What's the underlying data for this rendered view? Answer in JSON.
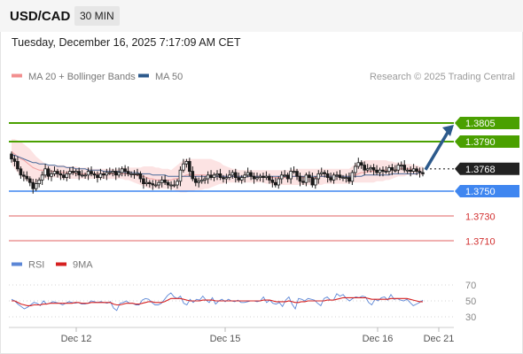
{
  "header": {
    "pair": "USD/CAD",
    "timeframe": "30 MIN"
  },
  "timestamp": "Tuesday, December 16, 2025 7:17:09 AM CET",
  "legend": {
    "items": [
      {
        "label": "MA 20 + Bollinger Bands",
        "color": "#f28f8f"
      },
      {
        "label": "MA 50",
        "color": "#2c5a8c"
      }
    ],
    "credit": "Research © 2025 Trading Central"
  },
  "rsi_legend": {
    "items": [
      {
        "label": "RSI",
        "color": "#5b86d6"
      },
      {
        "label": "9MA",
        "color": "#d62020"
      }
    ]
  },
  "chart_data": [
    {
      "type": "candlestick",
      "title": "USD/CAD",
      "ylim": [
        1.37,
        1.381
      ],
      "x_ticks": [
        "Dec 12",
        "Dec 15",
        "Dec 16",
        "Dec 21"
      ],
      "price_levels": [
        {
          "label": "1.3805",
          "value": 1.3805,
          "kind": "resistance",
          "color": "#4aa000"
        },
        {
          "label": "1.3790",
          "value": 1.379,
          "kind": "resistance",
          "color": "#4aa000"
        },
        {
          "label": "1.3768",
          "value": 1.3768,
          "kind": "current",
          "color": "#222222"
        },
        {
          "label": "1.3750",
          "value": 1.375,
          "kind": "pivot",
          "color": "#3f86f0"
        },
        {
          "label": "1.3730",
          "value": 1.373,
          "kind": "support",
          "color": "#e06060"
        },
        {
          "label": "1.3710",
          "value": 1.371,
          "kind": "support",
          "color": "#e06060"
        }
      ],
      "close_series": [
        1.3776,
        1.3774,
        1.3768,
        1.3763,
        1.3762,
        1.376,
        1.3757,
        1.3752,
        1.3756,
        1.3759,
        1.3763,
        1.3768,
        1.3762,
        1.3764,
        1.3766,
        1.3764,
        1.3763,
        1.3761,
        1.3764,
        1.3766,
        1.3765,
        1.3766,
        1.3763,
        1.3763,
        1.3763,
        1.3766,
        1.3764,
        1.3763,
        1.3761,
        1.3764,
        1.3763,
        1.3765,
        1.3765,
        1.3766,
        1.3763,
        1.3765,
        1.3768,
        1.3766,
        1.3764,
        1.3764,
        1.3764,
        1.3764,
        1.376,
        1.3756,
        1.3757,
        1.3756,
        1.3755,
        1.3755,
        1.3757,
        1.3759,
        1.3757,
        1.3755,
        1.3755,
        1.3755,
        1.3758,
        1.3767,
        1.3772,
        1.3774,
        1.3766,
        1.376,
        1.3757,
        1.3758,
        1.3759,
        1.376,
        1.3763,
        1.3761,
        1.3763,
        1.3764,
        1.3761,
        1.376,
        1.3761,
        1.3763,
        1.3765,
        1.3761,
        1.3759,
        1.3761,
        1.3763,
        1.3765,
        1.3762,
        1.376,
        1.3761,
        1.3762,
        1.3761,
        1.3762,
        1.3759,
        1.3757,
        1.3755,
        1.376,
        1.3763,
        1.3763,
        1.376,
        1.3766,
        1.3766,
        1.3762,
        1.3758,
        1.3757,
        1.3763,
        1.3761,
        1.3755,
        1.376,
        1.3764,
        1.3765,
        1.3764,
        1.3761,
        1.3759,
        1.3763,
        1.3763,
        1.3761,
        1.3761,
        1.3761,
        1.3758,
        1.3765,
        1.377,
        1.3773,
        1.3771,
        1.3767,
        1.3768,
        1.3769,
        1.3767,
        1.3765,
        1.3767,
        1.3766,
        1.3766,
        1.3769,
        1.3767,
        1.3767,
        1.3771,
        1.3771,
        1.3767,
        1.3767,
        1.3766,
        1.3768,
        1.3766,
        1.3765,
        1.3764
      ],
      "ma20": [
        1.3782,
        1.378,
        1.3778,
        1.3776,
        1.3775,
        1.3773,
        1.3771,
        1.3769,
        1.3768,
        1.3767,
        1.3767,
        1.3767,
        1.3767,
        1.3766,
        1.3766,
        1.3766,
        1.3765,
        1.3765,
        1.3765,
        1.3765,
        1.3765,
        1.3764,
        1.3764,
        1.3764,
        1.3764,
        1.3764,
        1.3764,
        1.3764,
        1.3764,
        1.3764,
        1.3764,
        1.3764,
        1.3764,
        1.3764,
        1.3764,
        1.3764,
        1.3764,
        1.3764,
        1.3764,
        1.3764,
        1.3763,
        1.3763,
        1.3762,
        1.3762,
        1.3761,
        1.376,
        1.376,
        1.3759,
        1.3759,
        1.3759,
        1.3759,
        1.3759,
        1.3759,
        1.376,
        1.376,
        1.3761,
        1.3762,
        1.3763,
        1.3763,
        1.3763,
        1.3763,
        1.3763,
        1.3763,
        1.3763,
        1.3762,
        1.3762,
        1.3762,
        1.3762,
        1.3762,
        1.3762,
        1.3762,
        1.3762,
        1.3762,
        1.3762,
        1.3762,
        1.3762,
        1.3762,
        1.3762,
        1.3762,
        1.3762,
        1.3762,
        1.3762,
        1.3762,
        1.3761,
        1.3761,
        1.3761,
        1.3761,
        1.3761,
        1.3761,
        1.3761,
        1.3761,
        1.3761,
        1.3762,
        1.3762,
        1.3762,
        1.3761,
        1.3761,
        1.3761,
        1.3761,
        1.3761,
        1.3761,
        1.3762,
        1.3762,
        1.3762,
        1.3762,
        1.3762,
        1.3762,
        1.3762,
        1.3762,
        1.3762,
        1.3762,
        1.3763,
        1.3763,
        1.3764,
        1.3765,
        1.3765,
        1.3766,
        1.3766,
        1.3766,
        1.3766,
        1.3766,
        1.3767,
        1.3767,
        1.3767,
        1.3767,
        1.3767,
        1.3768,
        1.3768,
        1.3768,
        1.3768,
        1.3768,
        1.3767,
        1.3767,
        1.3767
      ],
      "ma50": [
        1.3779,
        1.3779,
        1.3778,
        1.3777,
        1.3776,
        1.3775,
        1.3774,
        1.3773,
        1.3773,
        1.3772,
        1.3772,
        1.3772,
        1.3771,
        1.3771,
        1.3771,
        1.377,
        1.377,
        1.377,
        1.3769,
        1.3769,
        1.3769,
        1.3768,
        1.3768,
        1.3768,
        1.3768,
        1.3767,
        1.3767,
        1.3767,
        1.3767,
        1.3767,
        1.3766,
        1.3766,
        1.3766,
        1.3766,
        1.3766,
        1.3766,
        1.3765,
        1.3765,
        1.3765,
        1.3765,
        1.3765,
        1.3765,
        1.3764,
        1.3764,
        1.3764,
        1.3764,
        1.3763,
        1.3763,
        1.3763,
        1.3763,
        1.3763,
        1.3762,
        1.3762,
        1.3762,
        1.3762,
        1.3762,
        1.3762,
        1.3762,
        1.3762,
        1.3762,
        1.3762,
        1.3762,
        1.3762,
        1.3762,
        1.3762,
        1.3762,
        1.3762,
        1.3762,
        1.3762,
        1.3762,
        1.3762,
        1.3762,
        1.3762,
        1.3762,
        1.3762,
        1.3762,
        1.3762,
        1.3762,
        1.3762,
        1.3762,
        1.3762,
        1.3762,
        1.3762,
        1.3762,
        1.3762,
        1.3762,
        1.3762,
        1.3762,
        1.3762,
        1.3762,
        1.3762,
        1.3762,
        1.3762,
        1.3762,
        1.3762,
        1.3762,
        1.3762,
        1.3762,
        1.3762,
        1.3762,
        1.3762,
        1.3762,
        1.3762,
        1.3762,
        1.3762,
        1.3762,
        1.3762,
        1.3762,
        1.3762,
        1.3762,
        1.3762,
        1.3762,
        1.3762,
        1.3762,
        1.3762,
        1.3763,
        1.3763,
        1.3763,
        1.3763,
        1.3763,
        1.3763,
        1.3763,
        1.3763,
        1.3763,
        1.3764,
        1.3764,
        1.3764,
        1.3764,
        1.3764,
        1.3764,
        1.3764,
        1.3764,
        1.3764,
        1.3765,
        1.3765
      ],
      "bollinger_upper": [
        1.3792,
        1.3792,
        1.3791,
        1.379,
        1.3788,
        1.3786,
        1.3784,
        1.3781,
        1.3778,
        1.3776,
        1.3774,
        1.3772,
        1.3771,
        1.3771,
        1.3771,
        1.3771,
        1.3771,
        1.3771,
        1.377,
        1.377,
        1.377,
        1.377,
        1.3769,
        1.3769,
        1.3769,
        1.3769,
        1.3768,
        1.3768,
        1.3768,
        1.3768,
        1.3768,
        1.3768,
        1.3768,
        1.3768,
        1.3768,
        1.3768,
        1.3769,
        1.3769,
        1.3769,
        1.3769,
        1.3769,
        1.3769,
        1.3769,
        1.377,
        1.377,
        1.377,
        1.377,
        1.3769,
        1.3769,
        1.3768,
        1.3768,
        1.3768,
        1.3767,
        1.3769,
        1.3771,
        1.3773,
        1.3775,
        1.3776,
        1.3776,
        1.3776,
        1.3776,
        1.3776,
        1.3776,
        1.3776,
        1.3776,
        1.3776,
        1.3775,
        1.3774,
        1.3773,
        1.3771,
        1.377,
        1.3769,
        1.3768,
        1.3768,
        1.3767,
        1.3767,
        1.3767,
        1.3767,
        1.3767,
        1.3767,
        1.3767,
        1.3767,
        1.3767,
        1.3767,
        1.3767,
        1.3767,
        1.3767,
        1.3767,
        1.3767,
        1.3767,
        1.3767,
        1.3767,
        1.3768,
        1.3768,
        1.3768,
        1.3768,
        1.3768,
        1.3768,
        1.3768,
        1.3768,
        1.3768,
        1.3768,
        1.3768,
        1.3768,
        1.3768,
        1.3768,
        1.3768,
        1.3768,
        1.3768,
        1.3768,
        1.3768,
        1.377,
        1.3772,
        1.3773,
        1.3774,
        1.3775,
        1.3775,
        1.3775,
        1.3775,
        1.3775,
        1.3775,
        1.3775,
        1.3775,
        1.3774,
        1.3774,
        1.3773,
        1.3773,
        1.3773,
        1.3772,
        1.3772,
        1.3772,
        1.3771,
        1.3771,
        1.377,
        1.377
      ],
      "bollinger_lower": [
        1.3772,
        1.3768,
        1.3765,
        1.3762,
        1.376,
        1.3758,
        1.3757,
        1.3756,
        1.3757,
        1.3758,
        1.3759,
        1.376,
        1.376,
        1.3761,
        1.3761,
        1.3761,
        1.376,
        1.376,
        1.376,
        1.376,
        1.376,
        1.376,
        1.376,
        1.376,
        1.376,
        1.376,
        1.376,
        1.376,
        1.376,
        1.376,
        1.376,
        1.376,
        1.376,
        1.376,
        1.376,
        1.376,
        1.376,
        1.3759,
        1.3759,
        1.3758,
        1.3757,
        1.3756,
        1.3755,
        1.3754,
        1.3753,
        1.3752,
        1.3752,
        1.3752,
        1.3752,
        1.3752,
        1.3752,
        1.3752,
        1.3752,
        1.3751,
        1.375,
        1.3749,
        1.3749,
        1.3749,
        1.375,
        1.375,
        1.3751,
        1.3751,
        1.3751,
        1.3752,
        1.3752,
        1.3753,
        1.3754,
        1.3755,
        1.3756,
        1.3756,
        1.3757,
        1.3757,
        1.3757,
        1.3757,
        1.3757,
        1.3757,
        1.3757,
        1.3757,
        1.3757,
        1.3757,
        1.3757,
        1.3757,
        1.3757,
        1.3756,
        1.3756,
        1.3755,
        1.3755,
        1.3755,
        1.3755,
        1.3755,
        1.3755,
        1.3755,
        1.3755,
        1.3755,
        1.3755,
        1.3755,
        1.3755,
        1.3755,
        1.3755,
        1.3755,
        1.3755,
        1.3755,
        1.3756,
        1.3756,
        1.3756,
        1.3756,
        1.3756,
        1.3756,
        1.3756,
        1.3756,
        1.3756,
        1.3757,
        1.3757,
        1.3757,
        1.3757,
        1.3757,
        1.3757,
        1.3757,
        1.3757,
        1.3758,
        1.3758,
        1.3758,
        1.3759,
        1.3759,
        1.376,
        1.3761,
        1.3762,
        1.3762,
        1.3762,
        1.3763,
        1.3763,
        1.3763,
        1.3763,
        1.3763,
        1.3763
      ],
      "forecast": {
        "from": 1.3768,
        "to": 1.3805,
        "direction": "up",
        "color": "#2c5a8c"
      }
    },
    {
      "type": "line",
      "title": "RSI",
      "ylim": [
        25,
        78
      ],
      "y_ticks": [
        70,
        50,
        30
      ],
      "gridlines": [
        70,
        50,
        30
      ],
      "x_ticks": [
        "Dec 12",
        "Dec 15",
        "Dec 16",
        "Dec 21"
      ],
      "series": [
        {
          "name": "RSI",
          "color": "#5b86d6",
          "values": [
            52,
            50,
            46,
            43,
            40,
            42,
            45,
            48,
            47,
            44,
            50,
            46,
            47,
            49,
            48,
            47,
            45,
            47,
            49,
            48,
            47,
            48,
            46,
            46,
            47,
            50,
            49,
            48,
            49,
            48,
            47,
            49,
            41,
            38,
            47,
            48,
            50,
            47,
            47,
            45,
            45,
            51,
            53,
            52,
            48,
            45,
            45,
            47,
            52,
            57,
            60,
            55,
            53,
            56,
            47,
            45,
            52,
            48,
            52,
            51,
            56,
            51,
            48,
            54,
            46,
            50,
            52,
            49,
            52,
            50,
            49,
            51,
            48,
            48,
            49,
            50,
            50,
            49,
            50,
            55,
            48,
            51,
            47,
            46,
            48,
            43,
            51,
            55,
            46,
            40,
            53,
            52,
            50,
            53,
            52,
            51,
            47,
            44,
            53,
            55,
            51,
            51,
            59,
            56,
            58,
            53,
            50,
            53,
            55,
            54,
            56,
            55,
            48,
            45,
            52,
            50,
            54,
            55,
            51,
            58,
            52,
            53,
            51,
            50,
            52,
            48,
            44,
            46,
            48,
            51
          ]
        },
        {
          "name": "9MA",
          "color": "#d62020",
          "values": [
            50,
            50,
            48,
            46,
            45,
            44,
            44,
            45,
            45,
            45,
            46,
            46,
            47,
            47,
            47,
            47,
            47,
            47,
            47,
            47,
            48,
            48,
            47,
            47,
            47,
            48,
            48,
            48,
            48,
            48,
            48,
            48,
            46,
            45,
            45,
            46,
            47,
            47,
            47,
            46,
            46,
            47,
            48,
            49,
            49,
            48,
            48,
            48,
            49,
            51,
            53,
            53,
            53,
            53,
            52,
            51,
            50,
            50,
            50,
            50,
            51,
            51,
            51,
            51,
            50,
            50,
            50,
            50,
            50,
            50,
            50,
            50,
            50,
            50,
            50,
            50,
            50,
            50,
            50,
            51,
            51,
            51,
            50,
            49,
            49,
            49,
            49,
            50,
            49,
            48,
            48,
            49,
            49,
            50,
            50,
            50,
            50,
            50,
            50,
            51,
            51,
            51,
            52,
            53,
            54,
            54,
            54,
            54,
            54,
            54,
            54,
            54,
            53,
            52,
            52,
            52,
            52,
            52,
            52,
            53,
            53,
            53,
            53,
            53,
            53,
            52,
            51,
            50,
            49,
            49
          ]
        }
      ]
    }
  ]
}
